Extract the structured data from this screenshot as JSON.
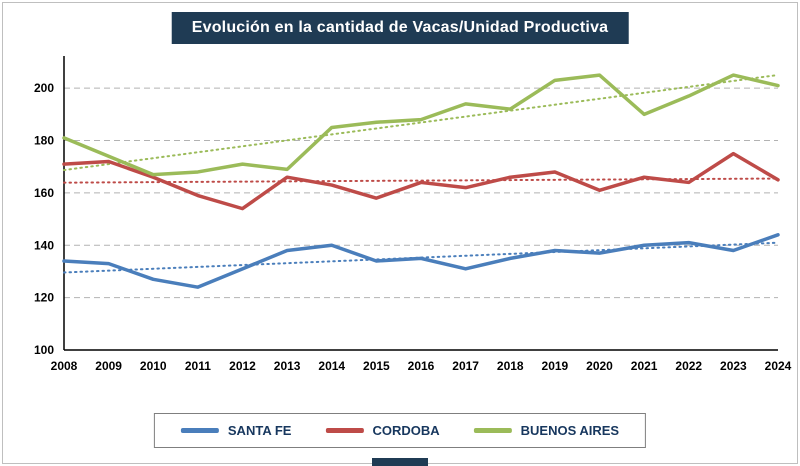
{
  "title": "Evolución en la cantidad de Vacas/Unidad Productiva",
  "colors": {
    "title_bg": "#1f3b54",
    "grid": "#b2b2b2",
    "axis": "#000000",
    "santa_fe": "#4a7ebb",
    "cordoba": "#be4b48",
    "buenos_aires": "#9bbb59"
  },
  "chart_data": {
    "type": "line",
    "title": "Evolución en la cantidad de Vacas/Unidad Productiva",
    "xlabel": "",
    "ylabel": "",
    "ylim": [
      100,
      210
    ],
    "yticks": [
      100,
      120,
      140,
      160,
      180,
      200
    ],
    "grid": "dashed-horizontal",
    "legend_position": "bottom",
    "trendlines": "dotted linear trendline per series",
    "categories": [
      "2008",
      "2009",
      "2010",
      "2011",
      "2012",
      "2013",
      "2014",
      "2015",
      "2016",
      "2017",
      "2018",
      "2019",
      "2020",
      "2021",
      "2022",
      "2023",
      "2024"
    ],
    "series": [
      {
        "name": "SANTA FE",
        "color": "#4a7ebb",
        "values": [
          134,
          133,
          127,
          124,
          131,
          138,
          140,
          134,
          135,
          131,
          135,
          138,
          137,
          140,
          141,
          138,
          144
        ]
      },
      {
        "name": "CORDOBA",
        "color": "#be4b48",
        "values": [
          171,
          172,
          166,
          159,
          154,
          166,
          163,
          158,
          164,
          162,
          166,
          168,
          161,
          166,
          164,
          175,
          165
        ]
      },
      {
        "name": "BUENOS AIRES",
        "color": "#9bbb59",
        "values": [
          181,
          174,
          167,
          168,
          171,
          169,
          185,
          187,
          188,
          194,
          192,
          203,
          205,
          190,
          197,
          205,
          201
        ]
      }
    ]
  }
}
